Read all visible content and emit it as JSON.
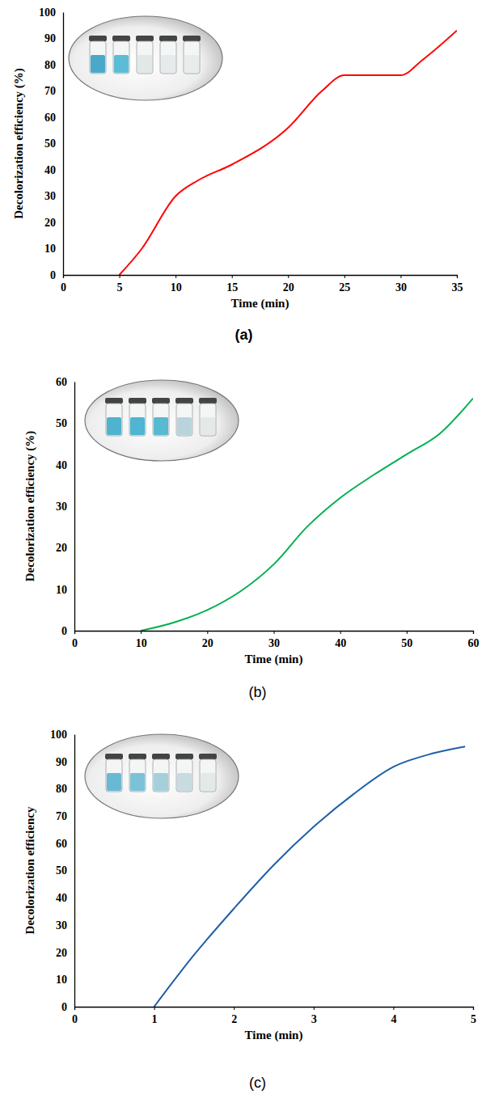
{
  "chart_data": [
    {
      "type": "line",
      "title": "(a)",
      "x_label": "Time (min)",
      "y_label": "Decolorization efficiency (%)",
      "x": [
        5,
        7,
        10,
        12,
        15,
        20,
        23,
        25,
        27,
        30,
        32,
        35
      ],
      "values": [
        0,
        10,
        30,
        36,
        42,
        56,
        70,
        76,
        76,
        76,
        82,
        93
      ],
      "color": "#ff0000",
      "grid": false,
      "xlim": [
        0,
        35
      ],
      "xticks": [
        0,
        5,
        10,
        15,
        20,
        25,
        30,
        35
      ],
      "ylim": [
        0,
        100
      ],
      "yticks": [
        0,
        10,
        20,
        30,
        40,
        50,
        60,
        70,
        80,
        90,
        100
      ]
    },
    {
      "type": "line",
      "title": "(b)",
      "x_label": "Time (min)",
      "y_label": "Decolorization efficiency (%)",
      "x": [
        10,
        15,
        20,
        25,
        30,
        35,
        40,
        45,
        50,
        55,
        60
      ],
      "values": [
        0,
        2,
        5,
        9.5,
        16,
        25,
        32,
        37.5,
        42.5,
        47.5,
        56
      ],
      "color": "#00b050",
      "grid": false,
      "xlim": [
        0,
        60
      ],
      "xticks": [
        0,
        10,
        20,
        30,
        40,
        50,
        60
      ],
      "ylim": [
        0,
        60
      ],
      "yticks": [
        0,
        10,
        20,
        30,
        40,
        50,
        60
      ]
    },
    {
      "type": "line",
      "title": "(c)",
      "x_label": "Time (min)",
      "y_label": "Decolorization efficiency",
      "x": [
        1,
        1.5,
        2,
        2.5,
        3,
        3.5,
        4,
        4.5,
        4.9
      ],
      "values": [
        0,
        19,
        36,
        52,
        66,
        78,
        88,
        93,
        95.5
      ],
      "color": "#1f5fa8",
      "grid": false,
      "xlim": [
        0,
        5
      ],
      "xticks": [
        0,
        1,
        2,
        3,
        4,
        5
      ],
      "ylim": [
        0,
        100
      ],
      "yticks": [
        0,
        10,
        20,
        30,
        40,
        50,
        60,
        70,
        80,
        90,
        100
      ]
    }
  ]
}
